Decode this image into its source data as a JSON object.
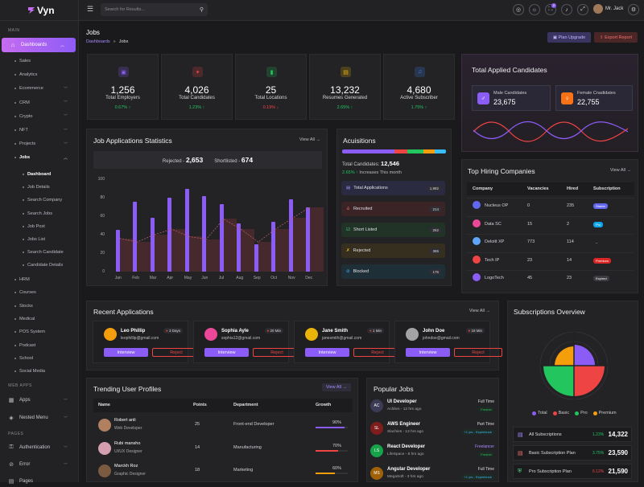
{
  "app": {
    "name": "Vyn"
  },
  "search": {
    "placeholder": "Search for Results..."
  },
  "user": {
    "name": "Mr. Jack",
    "notification_count": "2"
  },
  "sidebar": {
    "main_label": "MAIN",
    "web_apps_label": "WEB APPS",
    "pages_label": "PAGES",
    "dashboards": "Dashboards",
    "dashboard_subs": [
      "Sales",
      "Analytics",
      "Ecommerce",
      "CRM",
      "Crypto",
      "NFT",
      "Projects",
      "Jobs"
    ],
    "jobs_subs": [
      "Dashboard",
      "Job Details",
      "Search Company",
      "Search Jobs",
      "Job Post",
      "Jobs List",
      "Search Candidate",
      "Candidate Details"
    ],
    "more_subs": [
      "HRM",
      "Courses",
      "Stocks",
      "Medical",
      "POS System",
      "Podcast",
      "School",
      "Social Media"
    ],
    "apps": "Apps",
    "nested": "Nested Menu",
    "auth": "Authentication",
    "error": "Error",
    "pages": "Pages"
  },
  "page": {
    "title": "Jobs",
    "crumb_parent": "Dashboards",
    "crumb_current": "Jobs",
    "plan_upgrade": "Plan Upgrade",
    "export_report": "Export Report"
  },
  "stats": [
    {
      "value": "1,256",
      "label": "Total Employers",
      "change": "0.67% ↑",
      "trend": "up",
      "color": "#8b5cf6"
    },
    {
      "value": "4,026",
      "label": "Total Candidates",
      "change": "1.23% ↑",
      "trend": "up",
      "color": "#ef4444"
    },
    {
      "value": "25",
      "label": "Total Locations",
      "change": "0.19% ↓",
      "trend": "down",
      "color": "#22c55e"
    },
    {
      "value": "13,232",
      "label": "Resumes Generated",
      "change": "2.65% ↑",
      "trend": "up",
      "color": "#eab308"
    },
    {
      "value": "4,680",
      "label": "Active Subscriber",
      "change": "1.75% ↑",
      "trend": "up",
      "color": "#3b82f6"
    }
  ],
  "applied": {
    "title": "Total Applied Candidates",
    "male_label": "Male Candidates",
    "male_value": "23,675",
    "female_label": "Female Cnadidates",
    "female_value": "22,755"
  },
  "job_stats": {
    "title": "Job Applications Statistics",
    "view_all": "View All →",
    "rejected_label": "Rejected -",
    "rejected_value": "2,653",
    "shortlisted_label": "Shortlisted -",
    "shortlisted_value": "674"
  },
  "chart_data": {
    "type": "bar",
    "categories": [
      "Jan",
      "Feb",
      "Mar",
      "Apr",
      "May",
      "Jun",
      "Jul",
      "Aug",
      "Sep",
      "Oct",
      "Nov",
      "Dec"
    ],
    "yticks": [
      "100",
      "80",
      "60",
      "40",
      "20",
      "0"
    ],
    "ylim": [
      0,
      100
    ],
    "series": [
      {
        "values": [
          45,
          76,
          58,
          80,
          90,
          82,
          73,
          52,
          30,
          54,
          78,
          70
        ]
      },
      {
        "values": [
          36,
          32,
          40,
          46,
          38,
          35,
          57,
          46,
          32,
          46,
          58,
          70
        ]
      }
    ]
  },
  "acq": {
    "title": "Acuisitions",
    "total_label": "Total Candidates:",
    "total_value": "12,546",
    "growth": "2.65% ↑",
    "growth_text": "Increases This month",
    "items": [
      {
        "label": "Total Applications",
        "n": "1,982",
        "bg": "#2a2a40"
      },
      {
        "label": "Recruited",
        "n": "214",
        "bg": "#3a2426"
      },
      {
        "label": "Short Listed",
        "n": "262",
        "bg": "#213227"
      },
      {
        "label": "Rejected",
        "n": "365",
        "bg": "#362e1f"
      },
      {
        "label": "Blocked",
        "n": "176",
        "bg": "#1f2f38"
      }
    ]
  },
  "hiring": {
    "title": "Top Hiring Companies",
    "view_all": "View All →",
    "headers": [
      "Company",
      "Vacancies",
      "Hired",
      "Subscription"
    ],
    "rows": [
      {
        "company": "Nucleus OP",
        "vac": "0",
        "hired": "235",
        "sub": "Starter",
        "c": "#6366f1"
      },
      {
        "company": "Data SC",
        "vac": "15",
        "hired": "2",
        "sub": "Pro",
        "c": "#0ea5e9"
      },
      {
        "company": "Deloitt XP",
        "vac": "773",
        "hired": "114",
        "sub": "–",
        "c": "transparent"
      },
      {
        "company": "Tech IP",
        "vac": "23",
        "hired": "14",
        "sub": "Premium",
        "c": "#dc2626"
      },
      {
        "company": "LogoTech",
        "vac": "45",
        "hired": "23",
        "sub": "Expired",
        "c": "#3a3a40"
      }
    ]
  },
  "recent": {
    "title": "Recent Applications",
    "view_all": "View All →",
    "interview": "Interview",
    "reject": "Reject",
    "items": [
      {
        "name": "Leo Phillip",
        "email": "leophillip@gmail.com",
        "days": "3 Days",
        "av": "#f59e0b"
      },
      {
        "name": "Sophia Ayle",
        "email": "sophia12@gmail.com",
        "days": "20 Min",
        "av": "#ec4899"
      },
      {
        "name": "Jane Smith",
        "email": "janesmith@gmail.com",
        "days": "1 Min",
        "av": "#eab308"
      },
      {
        "name": "John Doe",
        "email": "johndoe@gmail.com",
        "days": "18 Min",
        "av": "#a3a3a3"
      }
    ]
  },
  "subs": {
    "title": "Subscriptions Overview",
    "legend": [
      "Total",
      "Basic",
      "Pro",
      "Premium"
    ],
    "rows": [
      {
        "label": "All Subscriptions",
        "chg": "1.23%",
        "trend": "up",
        "val": "14,322"
      },
      {
        "label": "Basic Subscription Plan",
        "chg": "3.75%",
        "trend": "up",
        "val": "23,590"
      },
      {
        "label": "Pro Subscription Plan",
        "chg": "6.12%",
        "trend": "down",
        "val": "21,590"
      }
    ]
  },
  "trending": {
    "title": "Trending User Profiles",
    "view_all": "View All →",
    "headers": [
      "Name",
      "Points",
      "Department",
      "Growth"
    ],
    "rows": [
      {
        "name": "Robert anli",
        "role": "Web Developer",
        "points": "25",
        "dept": "Front-end Developer",
        "growth": "90%",
        "g": 90,
        "c": "#8b5cf6"
      },
      {
        "name": "Rubi mansho",
        "role": "UI/UX Designer",
        "points": "14",
        "dept": "Manufacturing",
        "growth": "70%",
        "g": 70,
        "c": "#ef4444"
      },
      {
        "name": "Marckh Roz",
        "role": "Graphic Designer",
        "points": "18",
        "dept": "Marketing",
        "growth": "60%",
        "g": 60,
        "c": "#f59e0b"
      }
    ]
  },
  "popular": {
    "title": "Popular Jobs",
    "rows": [
      {
        "ini": "AC",
        "job": "UI Developer",
        "place": "Achiles - 12 hrs ago",
        "type": "Full Time",
        "tag": "Fresher",
        "c": "#3b3b55"
      },
      {
        "ini": "SL",
        "job": "AWS Engineer",
        "place": "Slachies - 13 hrs ago",
        "type": "Part Time",
        "tag": "+1 yrs - Experience",
        "c": "#7f1d1d"
      },
      {
        "ini": "LS",
        "job": "React Developer",
        "place": "LifeSpace - 8 hrs ago",
        "type": "Freelancer",
        "tag": "Fresher",
        "c": "#16a34a"
      },
      {
        "ini": "MS",
        "job": "Angular Developer",
        "place": "MegaSoft - 3 hrs ago",
        "type": "Full Time",
        "tag": "+1 yrs - Experience",
        "c": "#a16207"
      }
    ]
  }
}
